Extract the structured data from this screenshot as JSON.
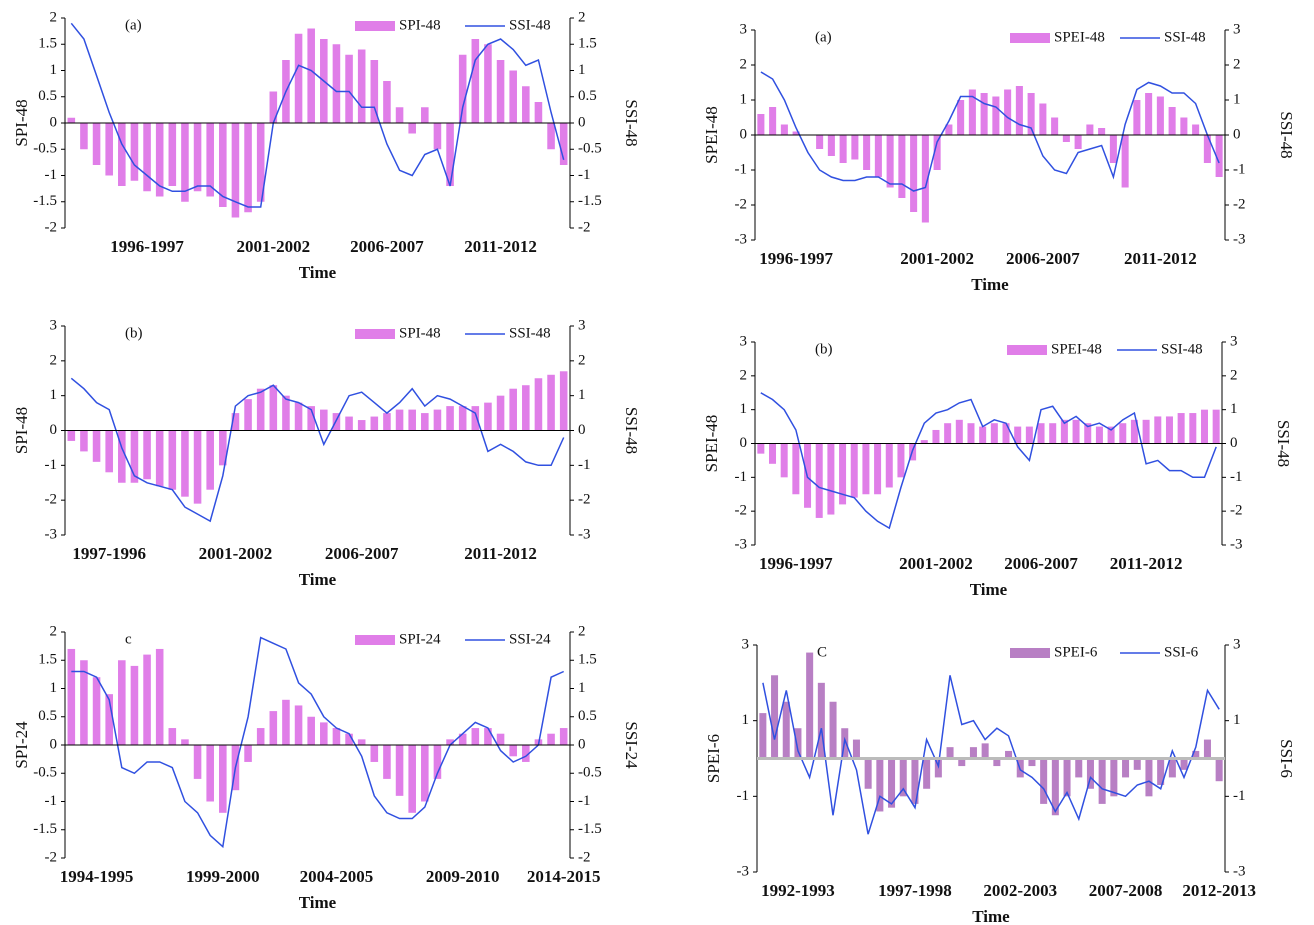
{
  "chart_data": [
    {
      "type": "bar-line",
      "panel_label": "(a)",
      "xlabel": "Time",
      "ylabel": "SPI-48",
      "y2label": "SSI-48",
      "categories": [
        null,
        null,
        null,
        null,
        null,
        null,
        "1996-1997",
        null,
        null,
        null,
        null,
        null,
        null,
        null,
        null,
        null,
        "2001-2002",
        null,
        null,
        null,
        null,
        null,
        null,
        null,
        null,
        "2006-2007",
        null,
        null,
        null,
        null,
        null,
        null,
        null,
        null,
        "2011-2012",
        null,
        null,
        null,
        null,
        null
      ],
      "ylim": [
        -2,
        2
      ],
      "yticks": [
        -2,
        -1.5,
        -1,
        -0.5,
        0,
        0.5,
        1,
        1.5,
        2
      ],
      "y2lim": [
        -2,
        2
      ],
      "y2ticks": [
        -2,
        -1.5,
        -1,
        -0.5,
        0,
        0.5,
        1,
        1.5,
        2
      ],
      "series": [
        {
          "name": "SPI-48",
          "color": "#e07ee8",
          "values": [
            0.1,
            -0.5,
            -0.8,
            -1.0,
            -1.2,
            -1.1,
            -1.3,
            -1.4,
            -1.2,
            -1.5,
            -1.3,
            -1.4,
            -1.6,
            -1.8,
            -1.7,
            -1.5,
            0.6,
            1.2,
            1.7,
            1.8,
            1.6,
            1.5,
            1.3,
            1.4,
            1.2,
            0.8,
            0.3,
            -0.2,
            0.3,
            -0.5,
            -1.2,
            1.3,
            1.6,
            1.5,
            1.2,
            1.0,
            0.7,
            0.4,
            -0.5,
            -0.8
          ]
        },
        {
          "name": "SSI-48",
          "color": "#3050e0",
          "axis": "y2",
          "values": [
            1.9,
            1.6,
            0.9,
            0.2,
            -0.4,
            -0.8,
            -1.0,
            -1.2,
            -1.3,
            -1.3,
            -1.2,
            -1.2,
            -1.4,
            -1.5,
            -1.6,
            -1.6,
            0.0,
            0.6,
            1.1,
            1.0,
            0.8,
            0.6,
            0.6,
            0.3,
            0.3,
            -0.4,
            -0.9,
            -1.0,
            -0.6,
            -0.5,
            -1.2,
            0.3,
            1.2,
            1.5,
            1.6,
            1.4,
            1.1,
            1.2,
            0.2,
            -0.7
          ]
        }
      ]
    },
    {
      "type": "bar-line",
      "panel_label": "(a)",
      "xlabel": "Time",
      "ylabel": "SPEI-48",
      "y2label": "SSI-48",
      "categories": [
        null,
        null,
        null,
        "1996-1997",
        null,
        null,
        null,
        null,
        null,
        null,
        null,
        null,
        null,
        null,
        null,
        "2001-2002",
        null,
        null,
        null,
        null,
        null,
        null,
        null,
        null,
        "2006-2007",
        null,
        null,
        null,
        null,
        null,
        null,
        null,
        null,
        null,
        "2011-2012",
        null,
        null,
        null,
        null,
        null
      ],
      "ylim": [
        -3,
        3
      ],
      "yticks": [
        -3,
        -2,
        -1,
        0,
        1,
        2,
        3
      ],
      "y2lim": [
        -3,
        3
      ],
      "y2ticks": [
        -3,
        -2,
        -1,
        0,
        1,
        2,
        3
      ],
      "series": [
        {
          "name": "SPEI-48",
          "color": "#e07ee8",
          "values": [
            0.6,
            0.8,
            0.3,
            0.1,
            0,
            -0.4,
            -0.6,
            -0.8,
            -0.7,
            -1.0,
            -1.2,
            -1.5,
            -1.8,
            -2.2,
            -2.5,
            -1.0,
            0.3,
            1.0,
            1.3,
            1.2,
            1.1,
            1.3,
            1.4,
            1.2,
            0.9,
            0.5,
            -0.2,
            -0.4,
            0.3,
            0.2,
            -0.8,
            -1.5,
            1.0,
            1.2,
            1.1,
            0.8,
            0.5,
            0.3,
            -0.8,
            -1.2
          ]
        },
        {
          "name": "SSI-48",
          "color": "#3050e0",
          "axis": "y2",
          "values": [
            1.8,
            1.6,
            1.0,
            0.2,
            -0.5,
            -1.0,
            -1.2,
            -1.3,
            -1.3,
            -1.2,
            -1.2,
            -1.4,
            -1.4,
            -1.6,
            -1.5,
            -0.2,
            0.4,
            1.1,
            1.1,
            0.9,
            0.8,
            0.5,
            0.3,
            0.2,
            -0.6,
            -1.0,
            -1.1,
            -0.5,
            -0.4,
            -0.3,
            -1.2,
            0.3,
            1.3,
            1.5,
            1.4,
            1.2,
            1.2,
            0.9,
            0,
            -0.8
          ]
        }
      ]
    },
    {
      "type": "bar-line",
      "panel_label": "(b)",
      "xlabel": "Time",
      "ylabel": "SPI-48",
      "y2label": "SSI-48",
      "categories": [
        null,
        null,
        null,
        "1997-1996",
        null,
        null,
        null,
        null,
        null,
        null,
        null,
        null,
        null,
        "2001-2002",
        null,
        null,
        null,
        null,
        null,
        null,
        null,
        null,
        null,
        "2006-2007",
        null,
        null,
        null,
        null,
        null,
        null,
        null,
        null,
        null,
        null,
        "2011-2012",
        null,
        null,
        null,
        null,
        null
      ],
      "ylim": [
        -3,
        3
      ],
      "yticks": [
        -3,
        -2,
        -1,
        0,
        1,
        2,
        3
      ],
      "y2lim": [
        -3,
        3
      ],
      "y2ticks": [
        -3,
        -2,
        -1,
        0,
        1,
        2,
        3
      ],
      "series": [
        {
          "name": "SPI-48",
          "color": "#e07ee8",
          "values": [
            -0.3,
            -0.6,
            -0.9,
            -1.2,
            -1.5,
            -1.5,
            -1.4,
            -1.6,
            -1.7,
            -1.9,
            -2.1,
            -1.7,
            -1.0,
            0.5,
            0.9,
            1.2,
            1.3,
            1.0,
            0.8,
            0.7,
            0.6,
            0.5,
            0.4,
            0.3,
            0.4,
            0.5,
            0.6,
            0.6,
            0.5,
            0.6,
            0.7,
            0.7,
            0.7,
            0.8,
            1.0,
            1.2,
            1.3,
            1.5,
            1.6,
            1.7
          ]
        },
        {
          "name": "SSI-48",
          "color": "#3050e0",
          "axis": "y2",
          "values": [
            1.5,
            1.2,
            0.8,
            0.6,
            -0.5,
            -1.3,
            -1.5,
            -1.6,
            -1.7,
            -2.2,
            -2.4,
            -2.6,
            -1.3,
            0.7,
            1.0,
            1.1,
            1.3,
            0.9,
            0.8,
            0.6,
            -0.4,
            0.3,
            1.0,
            1.1,
            0.8,
            0.5,
            0.8,
            1.2,
            0.7,
            1.0,
            0.9,
            0.7,
            0.5,
            -0.6,
            -0.4,
            -0.6,
            -0.9,
            -1.0,
            -1.0,
            -0.2
          ]
        }
      ]
    },
    {
      "type": "bar-line",
      "panel_label": "(b)",
      "xlabel": "Time",
      "ylabel": "SPEI-48",
      "y2label": "SSI-48",
      "categories": [
        null,
        null,
        null,
        "1996-1997",
        null,
        null,
        null,
        null,
        null,
        null,
        null,
        null,
        null,
        null,
        null,
        "2001-2002",
        null,
        null,
        null,
        null,
        null,
        null,
        null,
        null,
        "2006-2007",
        null,
        null,
        null,
        null,
        null,
        null,
        null,
        null,
        "2011-2012",
        null,
        null,
        null,
        null,
        null,
        null
      ],
      "ylim": [
        -3,
        3
      ],
      "yticks": [
        -3,
        -2,
        -1,
        0,
        1,
        2,
        3
      ],
      "y2lim": [
        -3,
        3
      ],
      "y2ticks": [
        -3,
        -2,
        -1,
        0,
        1,
        2,
        3
      ],
      "series": [
        {
          "name": "SPEI-48",
          "color": "#e07ee8",
          "values": [
            -0.3,
            -0.6,
            -1.0,
            -1.5,
            -1.9,
            -2.2,
            -2.1,
            -1.8,
            -1.6,
            -1.5,
            -1.5,
            -1.3,
            -1.0,
            -0.5,
            0.1,
            0.4,
            0.6,
            0.7,
            0.6,
            0.5,
            0.6,
            0.6,
            0.5,
            0.5,
            0.6,
            0.6,
            0.7,
            0.7,
            0.6,
            0.5,
            0.5,
            0.6,
            0.7,
            0.7,
            0.8,
            0.8,
            0.9,
            0.9,
            1.0,
            1.0
          ]
        },
        {
          "name": "SSI-48",
          "color": "#3050e0",
          "axis": "y2",
          "values": [
            1.5,
            1.3,
            1.0,
            0.4,
            -1.0,
            -1.3,
            -1.4,
            -1.5,
            -1.6,
            -2.0,
            -2.3,
            -2.5,
            -1.3,
            -0.2,
            0.6,
            0.9,
            1.0,
            1.2,
            1.3,
            0.5,
            0.7,
            0.6,
            -0.1,
            -0.5,
            1.0,
            1.1,
            0.6,
            0.8,
            0.5,
            0.6,
            0.4,
            0.7,
            0.9,
            -0.6,
            -0.5,
            -0.8,
            -0.8,
            -1.0,
            -1.0,
            -0.1
          ]
        }
      ]
    },
    {
      "type": "bar-line",
      "panel_label": "c",
      "xlabel": "Time",
      "ylabel": "SPI-24",
      "y2label": "SSI-24",
      "categories": [
        null,
        null,
        "1994-1995",
        null,
        null,
        null,
        null,
        null,
        null,
        null,
        null,
        null,
        "1999-2000",
        null,
        null,
        null,
        null,
        null,
        null,
        null,
        null,
        "2004-2005",
        null,
        null,
        null,
        null,
        null,
        null,
        null,
        null,
        null,
        "2009-2010",
        null,
        null,
        null,
        null,
        null,
        null,
        null,
        "2014-2015"
      ],
      "ylim": [
        -2,
        2
      ],
      "yticks": [
        -2,
        -1.5,
        -1,
        -0.5,
        0,
        0.5,
        1,
        1.5,
        2
      ],
      "y2lim": [
        -2,
        2
      ],
      "y2ticks": [
        -2,
        -1.5,
        -1,
        -0.5,
        0,
        0.5,
        1,
        1.5,
        2
      ],
      "series": [
        {
          "name": "SPI-24",
          "color": "#e07ee8",
          "values": [
            1.7,
            1.5,
            1.2,
            0.9,
            1.5,
            1.4,
            1.6,
            1.7,
            0.3,
            0.1,
            -0.6,
            -1.0,
            -1.2,
            -0.8,
            -0.3,
            0.3,
            0.6,
            0.8,
            0.7,
            0.5,
            0.4,
            0.3,
            0.2,
            0.1,
            -0.3,
            -0.6,
            -0.9,
            -1.2,
            -1.0,
            -0.6,
            0.1,
            0.2,
            0.3,
            0.3,
            0.2,
            -0.2,
            -0.3,
            0.1,
            0.2,
            0.3
          ]
        },
        {
          "name": "SSI-24",
          "color": "#3050e0",
          "axis": "y2",
          "values": [
            1.3,
            1.3,
            1.2,
            0.8,
            -0.4,
            -0.5,
            -0.3,
            -0.3,
            -0.4,
            -1.0,
            -1.2,
            -1.6,
            -1.8,
            -0.4,
            0.5,
            1.9,
            1.8,
            1.7,
            1.1,
            0.9,
            0.5,
            0.3,
            0.2,
            -0.2,
            -0.9,
            -1.2,
            -1.3,
            -1.3,
            -1.1,
            -0.5,
            0,
            0.2,
            0.4,
            0.3,
            -0.1,
            -0.3,
            -0.2,
            0.0,
            1.2,
            1.3
          ]
        }
      ]
    },
    {
      "type": "bar-line",
      "panel_label": "C",
      "xlabel": "Time",
      "ylabel": "SPEI-6",
      "y2label": "SSI-6",
      "categories": [
        null,
        null,
        null,
        "1992-1993",
        null,
        null,
        null,
        null,
        null,
        null,
        null,
        null,
        null,
        "1997-1998",
        null,
        null,
        null,
        null,
        null,
        null,
        null,
        null,
        "2002-2003",
        null,
        null,
        null,
        null,
        null,
        null,
        null,
        null,
        "2007-2008",
        null,
        null,
        null,
        null,
        null,
        null,
        null,
        "2012-2013"
      ],
      "ylim": [
        -3,
        3
      ],
      "yticks": [
        -3,
        -1,
        1,
        3
      ],
      "y2lim": [
        -3,
        3
      ],
      "y2ticks": [
        -3,
        -1,
        1,
        3
      ],
      "series": [
        {
          "name": "SPEI-6",
          "color": "#b87fc4",
          "values": [
            1.2,
            2.2,
            1.5,
            0.8,
            2.8,
            2.0,
            1.5,
            0.8,
            0.5,
            -0.8,
            -1.4,
            -1.3,
            -1.0,
            -1.2,
            -0.8,
            -0.5,
            0.3,
            -0.2,
            0.3,
            0.4,
            -0.2,
            0.2,
            -0.5,
            -0.2,
            -1.2,
            -1.5,
            -1.0,
            -0.5,
            -0.8,
            -1.2,
            -1.0,
            -0.5,
            -0.3,
            -1.0,
            -0.7,
            -0.5,
            -0.3,
            0.2,
            0.5,
            -0.6
          ]
        },
        {
          "name": "SSI-6",
          "color": "#3050e0",
          "axis": "y2",
          "values": [
            2.0,
            0.5,
            1.8,
            0.2,
            -0.5,
            0.8,
            -1.5,
            0.5,
            -0.3,
            -2.0,
            -1.0,
            -1.2,
            -0.8,
            -1.3,
            0.5,
            -0.2,
            2.2,
            0.9,
            1.0,
            0.5,
            0.8,
            0.6,
            -0.3,
            -0.5,
            -0.8,
            -1.4,
            -0.9,
            -1.6,
            -0.5,
            -0.8,
            -0.9,
            -1.0,
            -0.7,
            -0.6,
            -0.8,
            0.2,
            -0.5,
            0.3,
            1.8,
            1.3
          ]
        }
      ]
    }
  ]
}
